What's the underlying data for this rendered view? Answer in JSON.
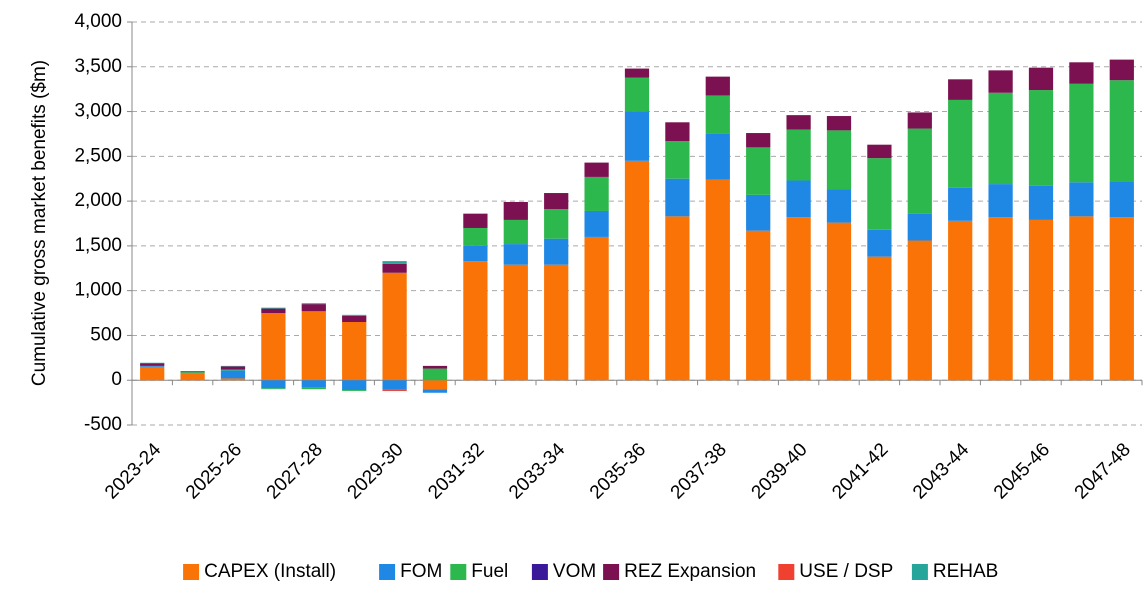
{
  "chart_data": {
    "type": "stacked-bar",
    "y_label": "Cumulative gross market benefits ($m)",
    "categories": [
      "2023-24",
      null,
      "2025-26",
      null,
      "2027-28",
      null,
      "2029-30",
      null,
      "2031-32",
      null,
      "2033-34",
      null,
      "2035-36",
      null,
      "2037-38",
      null,
      "2039-40",
      null,
      "2041-42",
      null,
      "2043-44",
      null,
      "2045-46",
      null,
      "2047-48"
    ],
    "series": [
      {
        "name": "CAPEX (Install)",
        "color": "#f97306",
        "values": [
          150,
          80,
          20,
          750,
          770,
          650,
          1200,
          -100,
          1330,
          1290,
          1290,
          1600,
          2450,
          1830,
          2240,
          1670,
          1820,
          1760,
          1380,
          1560,
          1780,
          1820,
          1790,
          1830,
          1820
        ]
      },
      {
        "name": "FOM",
        "color": "#1f88e5",
        "values": [
          10,
          0,
          90,
          -90,
          -80,
          -110,
          -100,
          -40,
          170,
          230,
          290,
          290,
          550,
          420,
          510,
          400,
          410,
          370,
          300,
          300,
          370,
          370,
          380,
          380,
          400
        ]
      },
      {
        "name": "Fuel",
        "color": "#2db84d",
        "values": [
          0,
          10,
          10,
          -10,
          -20,
          -10,
          0,
          130,
          200,
          270,
          330,
          380,
          380,
          420,
          430,
          530,
          570,
          660,
          800,
          950,
          980,
          1020,
          1070,
          1100,
          1130
        ]
      },
      {
        "name": "VOM",
        "color": "#3b1a9a",
        "values": [
          0,
          0,
          0,
          0,
          0,
          0,
          0,
          0,
          0,
          0,
          0,
          0,
          0,
          0,
          0,
          0,
          0,
          0,
          0,
          0,
          0,
          0,
          0,
          0,
          0
        ]
      },
      {
        "name": "REZ Expansion",
        "color": "#7b1150",
        "values": [
          30,
          10,
          35,
          50,
          80,
          70,
          100,
          30,
          160,
          200,
          180,
          160,
          100,
          210,
          210,
          160,
          160,
          160,
          150,
          180,
          230,
          250,
          250,
          240,
          230
        ]
      },
      {
        "name": "USE / DSP",
        "color": "#f04030",
        "values": [
          0,
          0,
          0,
          0,
          0,
          0,
          -20,
          0,
          0,
          0,
          0,
          0,
          0,
          0,
          0,
          0,
          0,
          0,
          0,
          0,
          0,
          0,
          0,
          0,
          0
        ]
      },
      {
        "name": "REHAB",
        "color": "#26a69a",
        "values": [
          5,
          0,
          5,
          10,
          10,
          10,
          30,
          0,
          0,
          0,
          0,
          0,
          0,
          0,
          0,
          0,
          0,
          0,
          0,
          0,
          0,
          0,
          0,
          0,
          0
        ]
      }
    ],
    "ylim": [
      -500,
      4000
    ],
    "yticks": [
      -500,
      0,
      500,
      {
        "value": 1000,
        "label": "1,000"
      },
      {
        "value": 1500,
        "label": "1,500"
      },
      {
        "value": 2000,
        "label": "2,000"
      },
      {
        "value": 2500,
        "label": "2,500"
      },
      {
        "value": 3000,
        "label": "3,000"
      },
      {
        "value": 3500,
        "label": "3,500"
      },
      {
        "value": 4000,
        "label": "4,000"
      }
    ],
    "grid": true,
    "legend": "bottom"
  }
}
